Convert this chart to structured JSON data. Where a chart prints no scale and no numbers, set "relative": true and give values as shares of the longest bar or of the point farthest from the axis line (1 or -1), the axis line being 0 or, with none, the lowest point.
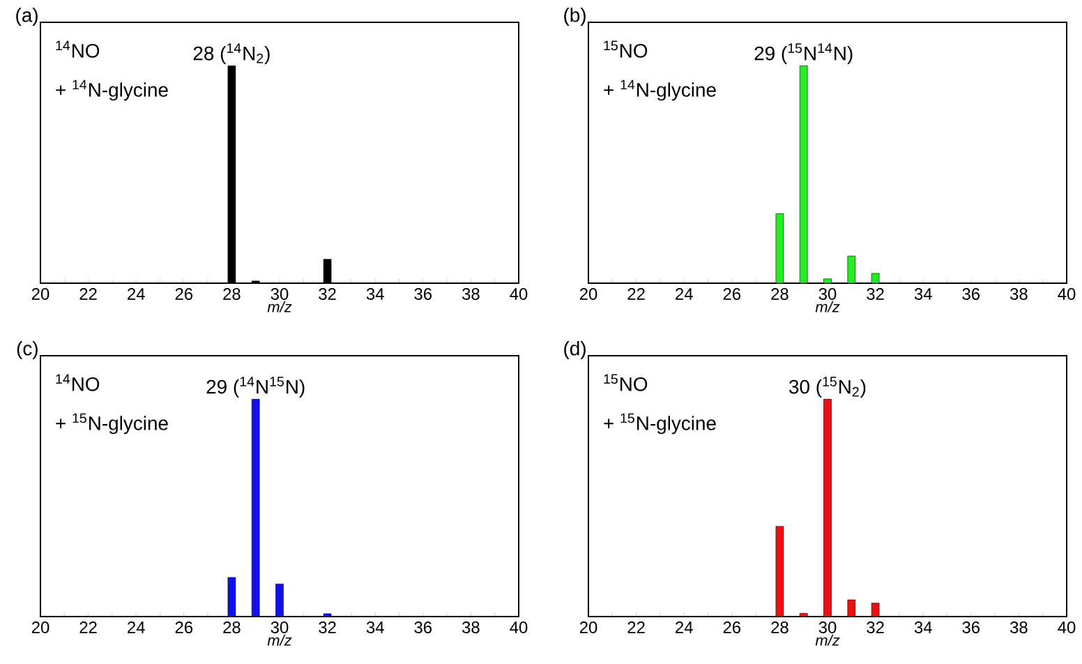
{
  "chart_data": [
    {
      "type": "bar",
      "title": "(a)",
      "xlabel": "m/z",
      "relative": true,
      "xlim": [
        20,
        40
      ],
      "xticks": [
        20,
        {
          "value": 21,
          "label": null
        },
        22,
        {
          "value": 23,
          "label": null
        },
        24,
        {
          "value": 25,
          "label": null
        },
        26,
        {
          "value": 27,
          "label": null
        },
        28,
        {
          "value": 29,
          "label": null
        },
        30,
        {
          "value": 31,
          "label": null
        },
        32,
        {
          "value": 33,
          "label": null
        },
        34,
        {
          "value": 35,
          "label": null
        },
        36,
        {
          "value": 37,
          "label": null
        },
        38,
        {
          "value": 39,
          "label": null
        },
        40
      ],
      "x": [
        28,
        29,
        32
      ],
      "series": [
        {
          "color": "#000000",
          "values": [
            1,
            0.01,
            0.11
          ]
        }
      ],
      "annotations": [
        "$^{14}$NO",
        "+ $^{14}$N-glycine",
        {
          "text": "28 ($^{14}$N$_{2}$)",
          "x": 28,
          "y": 1
        }
      ]
    },
    {
      "type": "bar",
      "title": "(b)",
      "xlabel": "m/z",
      "relative": true,
      "xlim": [
        20,
        40
      ],
      "xticks": [
        20,
        {
          "value": 21,
          "label": null
        },
        22,
        {
          "value": 23,
          "label": null
        },
        24,
        {
          "value": 25,
          "label": null
        },
        26,
        {
          "value": 27,
          "label": null
        },
        28,
        {
          "value": 29,
          "label": null
        },
        30,
        {
          "value": 31,
          "label": null
        },
        32,
        {
          "value": 33,
          "label": null
        },
        34,
        {
          "value": 35,
          "label": null
        },
        36,
        {
          "value": 37,
          "label": null
        },
        38,
        {
          "value": 39,
          "label": null
        },
        40
      ],
      "x": [
        28,
        29,
        30,
        31,
        32
      ],
      "series": [
        {
          "color": "#22ee22",
          "values": [
            0.32,
            1,
            0.02,
            0.125,
            0.045
          ]
        }
      ],
      "annotations": [
        "$^{15}$NO",
        "+ $^{14}$N-glycine",
        {
          "text": "29 ($^{15}$N$^{14}$N)",
          "x": 29,
          "y": 1
        }
      ]
    },
    {
      "type": "bar",
      "title": "(c)",
      "xlabel": "m/z",
      "relative": true,
      "xlim": [
        20,
        40
      ],
      "xticks": [
        20,
        {
          "value": 21,
          "label": null
        },
        22,
        {
          "value": 23,
          "label": null
        },
        24,
        {
          "value": 25,
          "label": null
        },
        26,
        {
          "value": 27,
          "label": null
        },
        28,
        {
          "value": 29,
          "label": null
        },
        30,
        {
          "value": 31,
          "label": null
        },
        32,
        {
          "value": 33,
          "label": null
        },
        34,
        {
          "value": 35,
          "label": null
        },
        36,
        {
          "value": 37,
          "label": null
        },
        38,
        {
          "value": 39,
          "label": null
        },
        40
      ],
      "x": [
        28,
        29,
        30,
        32
      ],
      "series": [
        {
          "color": "#1010ee",
          "values": [
            0.18,
            1,
            0.15,
            0.013
          ]
        }
      ],
      "annotations": [
        "$^{14}$NO",
        "+ $^{15}$N-glycine",
        {
          "text": "29 ($^{14}$N$^{15}$N)",
          "x": 29,
          "y": 1
        }
      ]
    },
    {
      "type": "bar",
      "title": "(d)",
      "xlabel": "m/z",
      "relative": true,
      "xlim": [
        20,
        40
      ],
      "xticks": [
        20,
        {
          "value": 21,
          "label": null
        },
        22,
        {
          "value": 23,
          "label": null
        },
        24,
        {
          "value": 25,
          "label": null
        },
        26,
        {
          "value": 27,
          "label": null
        },
        28,
        {
          "value": 29,
          "label": null
        },
        30,
        {
          "value": 31,
          "label": null
        },
        32,
        {
          "value": 33,
          "label": null
        },
        34,
        {
          "value": 35,
          "label": null
        },
        36,
        {
          "value": 37,
          "label": null
        },
        38,
        {
          "value": 39,
          "label": null
        },
        40
      ],
      "x": [
        28,
        29,
        30,
        31,
        32
      ],
      "series": [
        {
          "color": "#ee1010",
          "values": [
            0.415,
            0.015,
            1,
            0.077,
            0.062
          ]
        }
      ],
      "annotations": [
        "$^{15}$NO",
        "+ $^{15}$N-glycine",
        {
          "text": "30 ($^{15}$N$_{2}$)",
          "x": 30,
          "y": 1
        }
      ]
    }
  ]
}
